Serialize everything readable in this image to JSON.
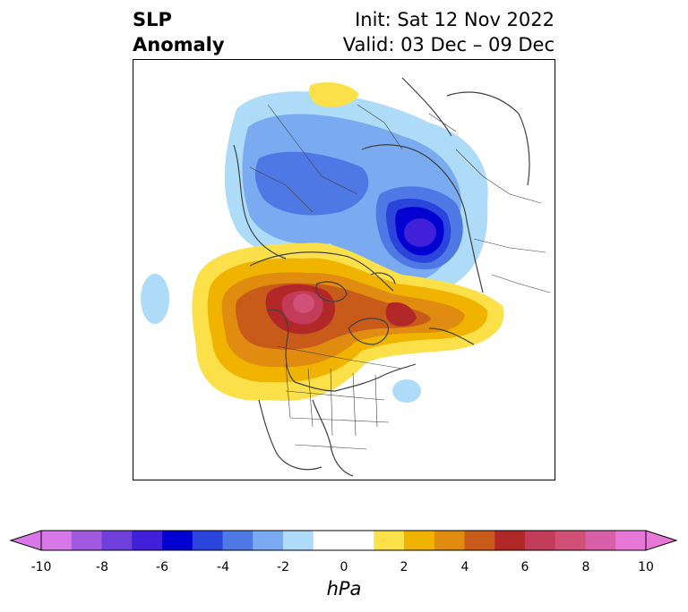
{
  "header": {
    "title_line1": "SLP",
    "title_line2": "Anomaly",
    "init": "Init: Sat 12 Nov 2022",
    "valid": "Valid: 03 Dec – 09 Dec"
  },
  "colorbar": {
    "unit": "hPa",
    "tick_labels": [
      "-10",
      "-8",
      "-6",
      "-4",
      "-2",
      "0",
      "2",
      "4",
      "6",
      "8",
      "10"
    ],
    "levels": [
      -10,
      -9,
      -8,
      -7,
      -6,
      -5,
      -4,
      -3,
      -2,
      -1,
      1,
      2,
      3,
      4,
      5,
      6,
      7,
      8,
      9,
      10
    ],
    "colors": [
      "#d878e8",
      "#a05ae0",
      "#6e3fda",
      "#4020d8",
      "#0000d0",
      "#2a44dc",
      "#4f78e4",
      "#7aaaf0",
      "#aedcf8",
      "#ffffff",
      "#fbe04a",
      "#f0b400",
      "#df8c10",
      "#c85a1a",
      "#b22828",
      "#c23c5a",
      "#d05078",
      "#d860a8",
      "#e878d8"
    ],
    "extend": "both"
  },
  "map": {
    "projection": "north-polar-stereographic",
    "features": [
      "coastlines",
      "country-borders",
      "us-state-borders"
    ]
  }
}
